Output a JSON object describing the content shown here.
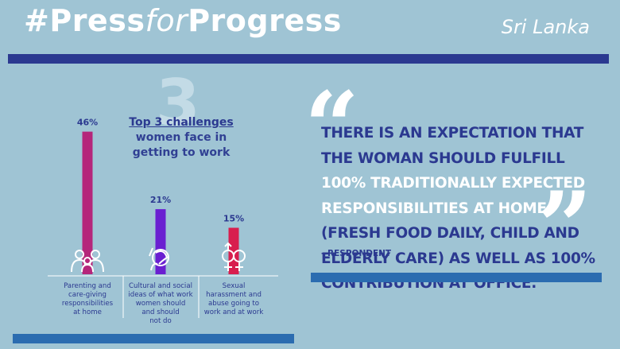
{
  "header": {
    "hashtag_part1": "#Press",
    "hashtag_part2": "for",
    "hashtag_part3": "Progress",
    "country": "Sri Lanka"
  },
  "chart_title": {
    "number": "3",
    "line1": "Top 3 challenges",
    "line2": "women face in",
    "line3": "getting to work"
  },
  "chart_data": {
    "type": "bar",
    "categories": [
      "Parenting and care-giving responsibilities at home",
      "Cultural and social ideas of what work women should and should not do",
      "Sexual harassment and abuse going to work and at work"
    ],
    "category_lines": [
      [
        "Parenting and",
        "care-giving",
        "responsibilities",
        "at home"
      ],
      [
        "Cultural and social",
        "ideas of what work",
        "women should",
        "and should",
        "not do"
      ],
      [
        "Sexual",
        "harassment and",
        "abuse going to",
        "work and at work"
      ]
    ],
    "values": [
      46,
      21,
      15
    ],
    "value_labels": [
      "46%",
      "21%",
      "15%"
    ],
    "icons": [
      "family-icon",
      "woman-silhouette-icon",
      "gender-symbols-icon"
    ],
    "colors": [
      "#b5267b",
      "#6a1fd1",
      "#d81e4e"
    ],
    "ylim": [
      0,
      50
    ]
  },
  "quote": {
    "part1": "There is an expectation that the woman should fulfill ",
    "part2": "100% traditionally expected responsibilities at home",
    "part3": " (fresh food daily, child and elderly care) as well as 100% contribution at office.",
    "attribution": "- Respondent"
  },
  "colors": {
    "background": "#9fc4d4",
    "navy": "#2b3990",
    "band_blue": "#2b6cb0",
    "white": "#ffffff"
  }
}
